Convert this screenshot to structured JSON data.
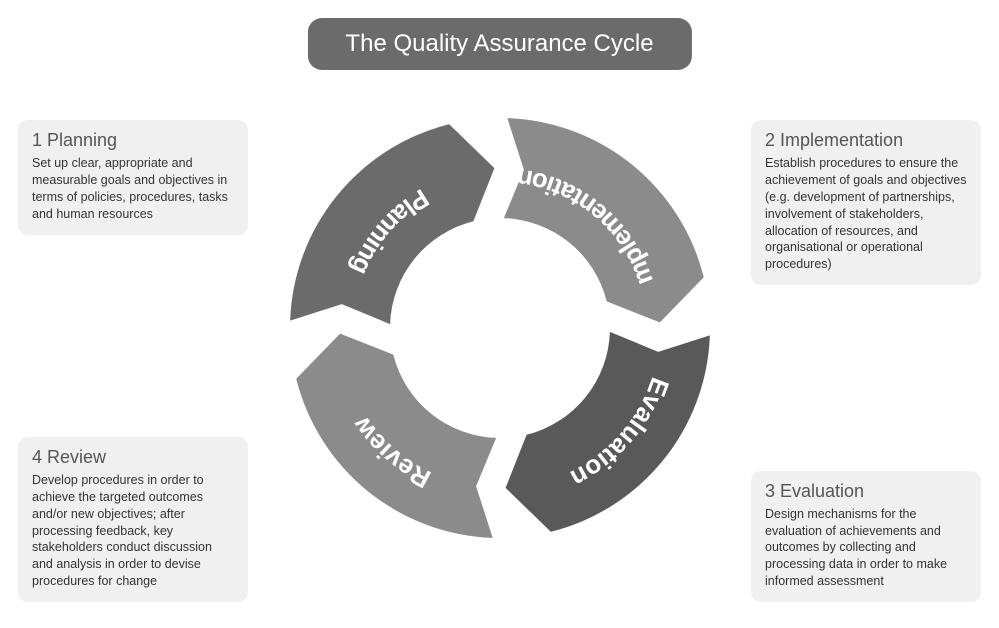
{
  "title": "The Quality Assurance Cycle",
  "diagram": {
    "type": "cycle-ring",
    "outer_radius": 210,
    "inner_radius": 110,
    "background": "#ffffff",
    "title_pill_bg": "#6b6b6b",
    "title_pill_fg": "#ffffff",
    "segment_label_color": "#ffffff",
    "segment_label_fontsize": 26,
    "arrow_head_len_deg": 12,
    "segments": [
      {
        "key": "planning",
        "label": "Planning",
        "color": "#6b6b6b",
        "start_deg": 182,
        "end_deg": 268
      },
      {
        "key": "implementation",
        "label": "Implementation",
        "color": "#8b8b8b",
        "start_deg": 272,
        "end_deg": 358
      },
      {
        "key": "evaluation",
        "label": "Evaluation",
        "color": "#595959",
        "start_deg": 2,
        "end_deg": 88
      },
      {
        "key": "review",
        "label": "Review",
        "color": "#8b8b8b",
        "start_deg": 92,
        "end_deg": 178
      }
    ]
  },
  "boxes": {
    "planning": {
      "heading": "1 Planning",
      "text": "Set up clear, appropriate and measurable goals and objectives in terms of policies, procedures, tasks and human resources",
      "pos": "tl"
    },
    "implementation": {
      "heading": "2 Implementation",
      "text": "Establish procedures to ensure the achievement of goals and objectives (e.g. development of partnerships, involvement of stakeholders, allocation of resources, and organisational or operational procedures)",
      "pos": "tr"
    },
    "evaluation": {
      "heading": "3 Evaluation",
      "text": "Design mechanisms for the evaluation of achievements and outcomes by collecting and processing data in order to make informed assessment",
      "pos": "br"
    },
    "review": {
      "heading": "4 Review",
      "text": "Develop procedures in order to achieve the targeted outcomes and/or new objectives; after processing feedback, key stakeholders conduct discussion and analysis in order to devise procedures for change",
      "pos": "bl"
    }
  },
  "info_box_bg": "#f0f0f0",
  "info_heading_color": "#555555",
  "info_text_color": "#333333"
}
